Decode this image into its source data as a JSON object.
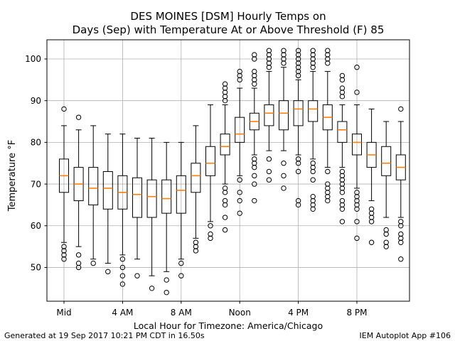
{
  "title": {
    "line1": "DES MOINES [DSM] Hourly Temps on",
    "line2": "Days (Sep) with Temperature At or Above Threshold (F) 85"
  },
  "footer": {
    "left": "Generated at 19 Sep 2017 10:21 PM CDT in 16.50s",
    "right": "IEM Autoplot App #106"
  },
  "chart_data": {
    "type": "boxplot",
    "title": "DES MOINES [DSM] Hourly Temps on Days (Sep) with Temperature At or Above Threshold (F) 85",
    "xlabel": "Local Hour for Timezone: America/Chicago",
    "ylabel": "Temperature °F",
    "grid": true,
    "grid_color": "#b0b0b0",
    "box_color": "#000000",
    "median_color": "#ff7f0e",
    "ylim": [
      41.9,
      104.6
    ],
    "y_ticks": [
      50,
      60,
      70,
      80,
      90,
      100
    ],
    "x_ticks": [
      {
        "hour": 0,
        "label": "Mid"
      },
      {
        "hour": 4,
        "label": "4 AM"
      },
      {
        "hour": 8,
        "label": "8 AM"
      },
      {
        "hour": 12,
        "label": "Noon"
      },
      {
        "hour": 16,
        "label": "4 PM"
      },
      {
        "hour": 20,
        "label": "8 PM"
      }
    ],
    "hours": [
      {
        "hour": 0,
        "whislo": 56,
        "q1": 68,
        "med": 72,
        "q3": 76,
        "whishi": 84,
        "outliers_high": [
          88
        ],
        "outliers_low": [
          55,
          54,
          53,
          52
        ]
      },
      {
        "hour": 1,
        "whislo": 55,
        "q1": 66,
        "med": 70,
        "q3": 74,
        "whishi": 83,
        "outliers_high": [
          86
        ],
        "outliers_low": [
          53,
          51,
          50
        ]
      },
      {
        "hour": 2,
        "whislo": 52,
        "q1": 65,
        "med": 69,
        "q3": 74,
        "whishi": 84,
        "outliers_high": [],
        "outliers_low": [
          51
        ]
      },
      {
        "hour": 3,
        "whislo": 51,
        "q1": 64,
        "med": 69,
        "q3": 73,
        "whishi": 82,
        "outliers_high": [],
        "outliers_low": [
          49
        ]
      },
      {
        "hour": 4,
        "whislo": 53,
        "q1": 64,
        "med": 68,
        "q3": 72,
        "whishi": 82,
        "outliers_high": [],
        "outliers_low": [
          52,
          50,
          48,
          46
        ]
      },
      {
        "hour": 5,
        "whislo": 52,
        "q1": 62,
        "med": 67.5,
        "q3": 71.5,
        "whishi": 81,
        "outliers_high": [],
        "outliers_low": [
          48
        ]
      },
      {
        "hour": 6,
        "whislo": 48,
        "q1": 62,
        "med": 67,
        "q3": 71,
        "whishi": 81,
        "outliers_high": [],
        "outliers_low": [
          45
        ]
      },
      {
        "hour": 7,
        "whislo": 49,
        "q1": 63,
        "med": 66.5,
        "q3": 71,
        "whishi": 80,
        "outliers_high": [],
        "outliers_low": [
          47,
          44
        ]
      },
      {
        "hour": 8,
        "whislo": 52,
        "q1": 63,
        "med": 68.5,
        "q3": 72,
        "whishi": 80,
        "outliers_high": [],
        "outliers_low": [
          51,
          48
        ]
      },
      {
        "hour": 9,
        "whislo": 57,
        "q1": 68,
        "med": 72,
        "q3": 75,
        "whishi": 84,
        "outliers_high": [],
        "outliers_low": [
          56,
          55,
          54
        ]
      },
      {
        "hour": 10,
        "whislo": 61,
        "q1": 72,
        "med": 75,
        "q3": 79,
        "whishi": 89,
        "outliers_high": [],
        "outliers_low": [
          60,
          58,
          57
        ]
      },
      {
        "hour": 11,
        "whislo": 70,
        "q1": 77,
        "med": 79,
        "q3": 82,
        "whishi": 89,
        "outliers_high": [
          94,
          93,
          92,
          91,
          90
        ],
        "outliers_low": [
          69,
          68,
          66,
          65,
          62,
          59
        ]
      },
      {
        "hour": 12,
        "whislo": 72,
        "q1": 80,
        "med": 82,
        "q3": 86,
        "whishi": 93,
        "outliers_high": [
          97,
          96,
          95
        ],
        "outliers_low": [
          71,
          68,
          66,
          63
        ]
      },
      {
        "hour": 13,
        "whislo": 77,
        "q1": 83,
        "med": 85,
        "q3": 87,
        "whishi": 93,
        "outliers_high": [
          101,
          100,
          97,
          96,
          95,
          94
        ],
        "outliers_low": [
          76,
          75,
          74,
          72,
          70,
          66
        ]
      },
      {
        "hour": 14,
        "whislo": 78,
        "q1": 84,
        "med": 87,
        "q3": 89,
        "whishi": 97,
        "outliers_high": [
          102,
          101,
          100,
          99,
          98
        ],
        "outliers_low": [
          76,
          73,
          71
        ]
      },
      {
        "hour": 15,
        "whislo": 78,
        "q1": 83,
        "med": 87,
        "q3": 90,
        "whishi": 98,
        "outliers_high": [
          102,
          101,
          100,
          99
        ],
        "outliers_low": [
          75,
          72,
          69
        ]
      },
      {
        "hour": 16,
        "whislo": 77,
        "q1": 84,
        "med": 88,
        "q3": 90,
        "whishi": 95,
        "outliers_high": [
          102,
          101,
          100,
          99,
          98,
          97,
          96
        ],
        "outliers_low": [
          76,
          75,
          73,
          66,
          65
        ]
      },
      {
        "hour": 17,
        "whislo": 76,
        "q1": 85,
        "med": 88,
        "q3": 90,
        "whishi": 97,
        "outliers_high": [
          102,
          101,
          100,
          99,
          98
        ],
        "outliers_low": [
          75,
          74,
          73,
          71,
          67,
          66,
          65,
          64
        ]
      },
      {
        "hour": 18,
        "whislo": 74,
        "q1": 83,
        "med": 86,
        "q3": 89,
        "whishi": 97,
        "outliers_high": [
          102,
          101,
          100,
          99
        ],
        "outliers_low": [
          73,
          70,
          69,
          68,
          67,
          66
        ]
      },
      {
        "hour": 19,
        "whislo": 74,
        "q1": 80,
        "med": 83,
        "q3": 85,
        "whishi": 89,
        "outliers_high": [
          96,
          95,
          93,
          92,
          91
        ],
        "outliers_low": [
          73,
          72,
          71,
          70,
          69,
          68,
          66,
          65,
          64,
          61
        ]
      },
      {
        "hour": 20,
        "whislo": 69,
        "q1": 77,
        "med": 80,
        "q3": 82,
        "whishi": 89,
        "outliers_high": [
          98,
          92
        ],
        "outliers_low": [
          68,
          67,
          66,
          65,
          64,
          61,
          57
        ]
      },
      {
        "hour": 21,
        "whislo": 66,
        "q1": 74,
        "med": 77,
        "q3": 80,
        "whishi": 88,
        "outliers_high": [],
        "outliers_low": [
          64,
          63,
          62,
          61,
          56
        ]
      },
      {
        "hour": 22,
        "whislo": 62,
        "q1": 72,
        "med": 75,
        "q3": 79,
        "whishi": 85,
        "outliers_high": [],
        "outliers_low": [
          59,
          58,
          56,
          55
        ]
      },
      {
        "hour": 23,
        "whislo": 62,
        "q1": 71,
        "med": 74,
        "q3": 77,
        "whishi": 85,
        "outliers_high": [
          88
        ],
        "outliers_low": [
          61,
          60,
          58,
          57,
          56,
          52
        ]
      }
    ]
  }
}
